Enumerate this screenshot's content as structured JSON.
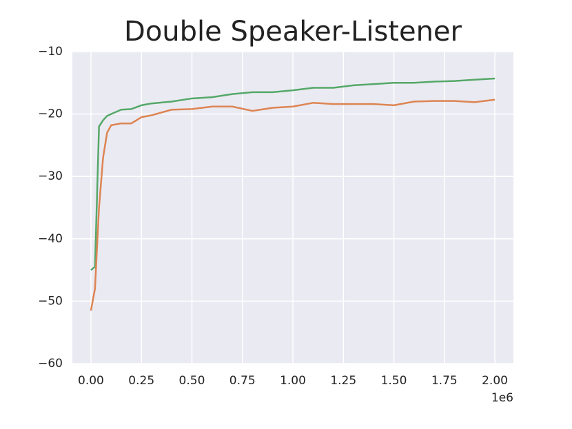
{
  "chart_data": {
    "type": "line",
    "title": "Double Speaker-Listener",
    "x": [
      0,
      0.02,
      0.04,
      0.06,
      0.08,
      0.1,
      0.15,
      0.2,
      0.25,
      0.3,
      0.4,
      0.5,
      0.6,
      0.7,
      0.8,
      0.9,
      1.0,
      1.1,
      1.2,
      1.3,
      1.4,
      1.5,
      1.6,
      1.7,
      1.8,
      1.9,
      2.0
    ],
    "series": [
      {
        "color": "#55a868",
        "values": [
          -45,
          -44.5,
          -22,
          -21,
          -20.3,
          -20,
          -19.3,
          -19.2,
          -18.6,
          -18.3,
          -18,
          -17.5,
          -17.3,
          -16.8,
          -16.5,
          -16.5,
          -16.2,
          -15.8,
          -15.8,
          -15.4,
          -15.2,
          -15,
          -15,
          -14.8,
          -14.7,
          -14.5,
          -14.3
        ]
      },
      {
        "color": "#dd8452",
        "values": [
          -51.5,
          -48,
          -35,
          -27,
          -23,
          -21.8,
          -21.5,
          -21.5,
          -20.5,
          -20.2,
          -19.3,
          -19.2,
          -18.8,
          -18.8,
          -19.5,
          -19,
          -18.8,
          -18.2,
          -18.4,
          -18.4,
          -18.4,
          -18.6,
          -18,
          -17.9,
          -17.9,
          -18.1,
          -17.7
        ]
      }
    ],
    "xlim": [
      -0.092,
      2.092
    ],
    "xticks": [
      {
        "value": 0,
        "label": "0.00"
      },
      0.25,
      {
        "value": 0.5,
        "label": "0.50"
      },
      0.75,
      {
        "value": 1,
        "label": "1.00"
      },
      1.25,
      {
        "value": 1.5,
        "label": "1.50"
      },
      1.75,
      {
        "value": 2,
        "label": "2.00"
      }
    ],
    "x_offset_label": "1e6",
    "ylim": [
      -60,
      -10
    ],
    "yticks": [
      {
        "value": -60,
        "label": "−60"
      },
      {
        "value": -50,
        "label": "−50"
      },
      {
        "value": -40,
        "label": "−40"
      },
      {
        "value": -30,
        "label": "−30"
      },
      {
        "value": -20,
        "label": "−20"
      },
      {
        "value": -10,
        "label": "−10"
      }
    ],
    "grid": true,
    "background": "#eaeaf2"
  }
}
